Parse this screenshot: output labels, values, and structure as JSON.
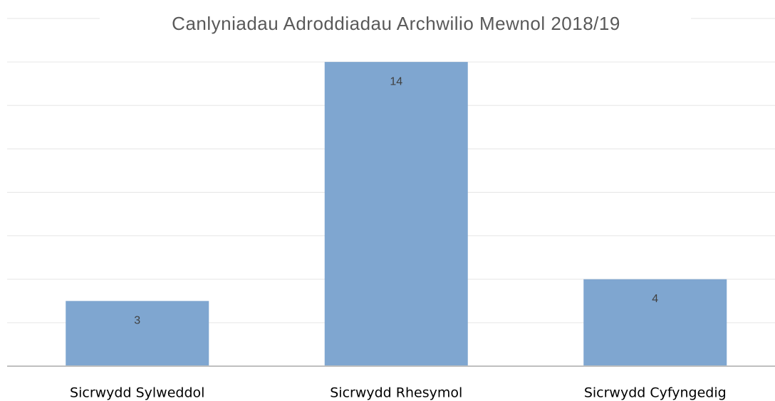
{
  "chart_data": {
    "type": "bar",
    "title": "Canlyniadau Adroddiadau Archwilio Mewnol 2018/19",
    "categories": [
      "Sicrwydd Sylweddol",
      "Sicrwydd Rhesymol",
      "Sicrwydd Cyfyngedig"
    ],
    "values": [
      3,
      14,
      4
    ],
    "color": "#7fa6d0",
    "ylim": [
      0,
      16
    ],
    "yticks": [
      0,
      2,
      4,
      6,
      8,
      10,
      12,
      14,
      16
    ],
    "grid": true
  }
}
